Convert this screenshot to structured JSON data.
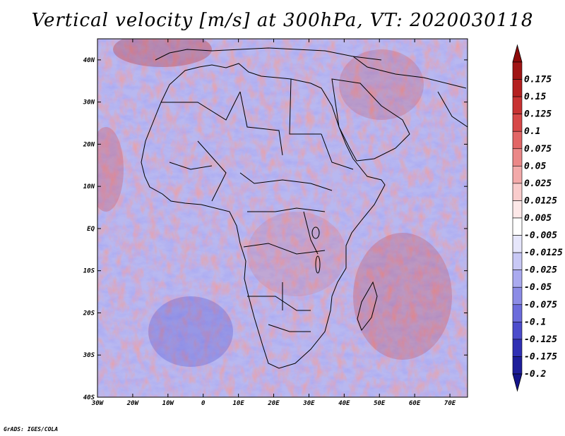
{
  "title": "Vertical velocity [m/s] at 300hPa, VT: 2020030118",
  "credit": "GrADS: IGES/COLA",
  "map": {
    "lon_range": [
      -30,
      75
    ],
    "lat_range": [
      -40,
      45
    ],
    "lat_ticks": [
      {
        "value": 40,
        "label": "40N"
      },
      {
        "value": 30,
        "label": "30N"
      },
      {
        "value": 20,
        "label": "20N"
      },
      {
        "value": 10,
        "label": "10N"
      },
      {
        "value": 0,
        "label": "EQ"
      },
      {
        "value": -10,
        "label": "10S"
      },
      {
        "value": -20,
        "label": "20S"
      },
      {
        "value": -30,
        "label": "30S"
      },
      {
        "value": -40,
        "label": "40S"
      }
    ],
    "lon_ticks": [
      {
        "value": -30,
        "label": "30W"
      },
      {
        "value": -20,
        "label": "20W"
      },
      {
        "value": -10,
        "label": "10W"
      },
      {
        "value": 0,
        "label": "0"
      },
      {
        "value": 10,
        "label": "10E"
      },
      {
        "value": 20,
        "label": "20E"
      },
      {
        "value": 30,
        "label": "30E"
      },
      {
        "value": 40,
        "label": "40E"
      },
      {
        "value": 50,
        "label": "50E"
      },
      {
        "value": 60,
        "label": "60E"
      },
      {
        "value": 70,
        "label": "70E"
      }
    ]
  },
  "colorbar": {
    "levels": [
      {
        "label": "0.175",
        "color": "#a01414"
      },
      {
        "label": "0.15",
        "color": "#b42020"
      },
      {
        "label": "0.125",
        "color": "#c83232"
      },
      {
        "label": "0.1",
        "color": "#d74848"
      },
      {
        "label": "0.075",
        "color": "#e26666"
      },
      {
        "label": "0.05",
        "color": "#eb8888"
      },
      {
        "label": "0.025",
        "color": "#f3aaaa"
      },
      {
        "label": "0.0125",
        "color": "#f9cccc"
      },
      {
        "label": "0.005",
        "color": "#fde8e8"
      },
      {
        "label": "-0.005",
        "color": "#ffffff"
      },
      {
        "label": "-0.0125",
        "color": "#e6e6fb"
      },
      {
        "label": "-0.025",
        "color": "#c8c8f5"
      },
      {
        "label": "-0.05",
        "color": "#aaaaef"
      },
      {
        "label": "-0.075",
        "color": "#8c8ce6"
      },
      {
        "label": "-0.1",
        "color": "#6c6cdc"
      },
      {
        "label": "-0.125",
        "color": "#4c4ccc"
      },
      {
        "label": "-0.175",
        "color": "#3030b4"
      },
      {
        "label": "-0.2",
        "color": "#1e1e9a"
      }
    ],
    "top_color": "#8c0a0a",
    "bottom_color": "#14148a"
  }
}
